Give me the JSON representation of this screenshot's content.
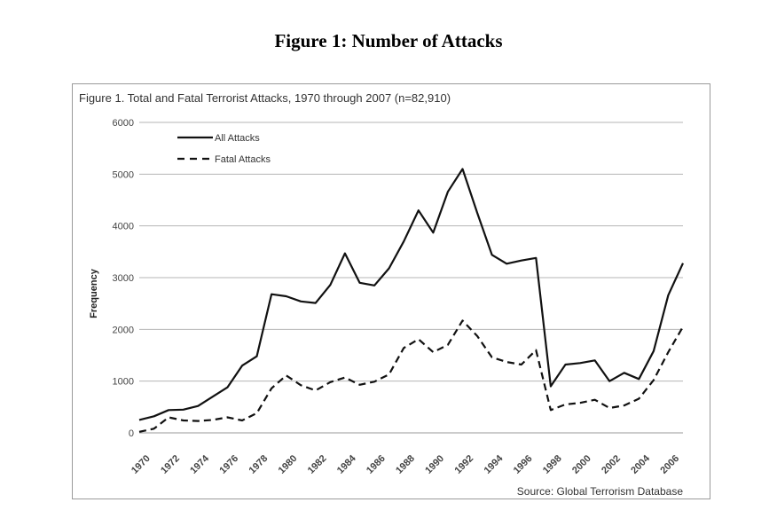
{
  "page": {
    "heading": "Figure 1: Number of Attacks"
  },
  "chart_data": {
    "type": "line",
    "title": "Figure 1. Total and Fatal Terrorist Attacks, 1970 through 2007 (n=82,910)",
    "xlabel": "",
    "ylabel": "Frequency",
    "ylim": [
      0,
      6000
    ],
    "yticks": [
      0,
      1000,
      2000,
      3000,
      4000,
      5000,
      6000
    ],
    "grid": true,
    "legend_position": "top-left",
    "source": "Source: Global Terrorism Database",
    "x": [
      1970,
      1971,
      1972,
      1973,
      1974,
      1975,
      1976,
      1977,
      1978,
      1979,
      1980,
      1981,
      1982,
      1983,
      1984,
      1985,
      1986,
      1987,
      1988,
      1989,
      1990,
      1991,
      1992,
      1993,
      1994,
      1995,
      1996,
      1997,
      1998,
      1999,
      2000,
      2001,
      2002,
      2003,
      2004,
      2005,
      2006,
      2007
    ],
    "xticks": [
      "1970",
      "1972",
      "1974",
      "1976",
      "1978",
      "1980",
      "1982",
      "1984",
      "1986",
      "1988",
      "1990",
      "1992",
      "1994",
      "1996",
      "1998",
      "2000",
      "2002",
      "2004",
      "2006"
    ],
    "series": [
      {
        "name": "All Attacks",
        "style": "solid",
        "values": [
          250,
          320,
          440,
          450,
          520,
          700,
          880,
          1300,
          1480,
          2680,
          2640,
          2540,
          2510,
          2860,
          3470,
          2900,
          2850,
          3180,
          3700,
          4300,
          3870,
          4660,
          5100,
          4250,
          3440,
          3270,
          3330,
          3380,
          900,
          1320,
          1350,
          1400,
          1000,
          1160,
          1040,
          1580,
          2660,
          3280
        ]
      },
      {
        "name": "Fatal Attacks",
        "style": "dashed",
        "values": [
          20,
          80,
          300,
          240,
          230,
          250,
          300,
          240,
          380,
          860,
          1110,
          920,
          820,
          980,
          1070,
          930,
          990,
          1130,
          1640,
          1810,
          1560,
          1700,
          2170,
          1870,
          1460,
          1370,
          1320,
          1600,
          440,
          550,
          580,
          640,
          480,
          530,
          660,
          1020,
          1560,
          2050
        ]
      }
    ]
  },
  "colors": {
    "line": "#111111",
    "grid": "#b5b5b5",
    "frame": "#9a9a9a"
  }
}
